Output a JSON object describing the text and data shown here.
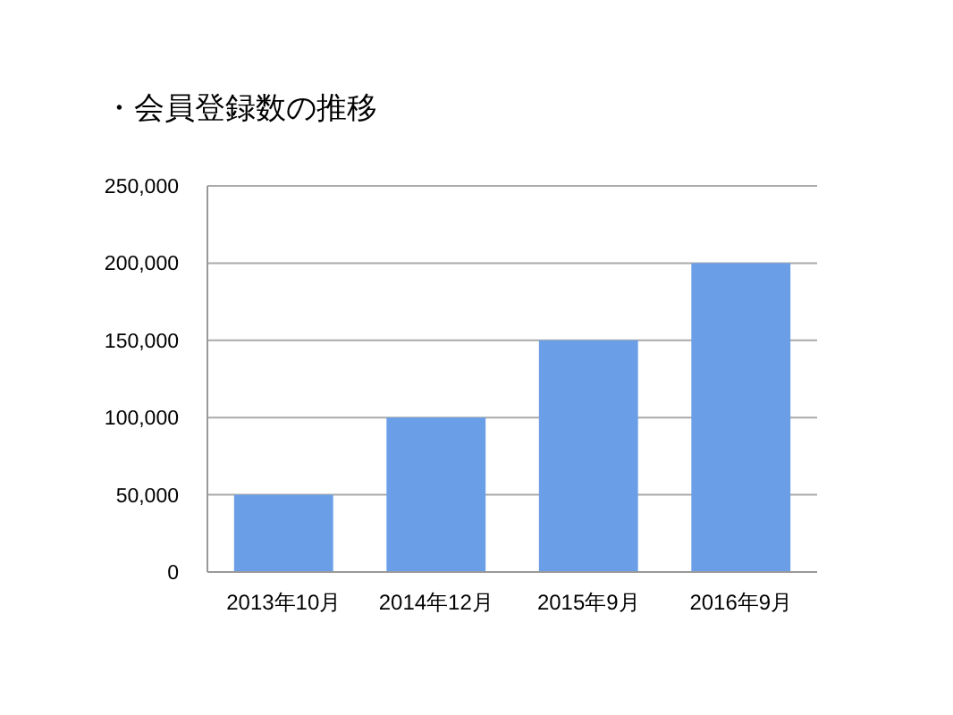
{
  "chart_data": {
    "type": "bar",
    "title": "・会員登録数の推移",
    "categories": [
      "2013年10月",
      "2014年12月",
      "2015年9月",
      "2016年9月"
    ],
    "values": [
      50000,
      100000,
      150000,
      200000
    ],
    "color": "#6a9fe8",
    "ylim": [
      0,
      250000
    ],
    "yticks": [
      0,
      {
        "value": 50000,
        "label": "50,000"
      },
      {
        "value": 100000,
        "label": "100,000"
      },
      {
        "value": 150000,
        "label": "150,000"
      },
      {
        "value": 200000,
        "label": "200,000"
      },
      {
        "value": 250000,
        "label": "250,000"
      }
    ],
    "grid": "y"
  }
}
